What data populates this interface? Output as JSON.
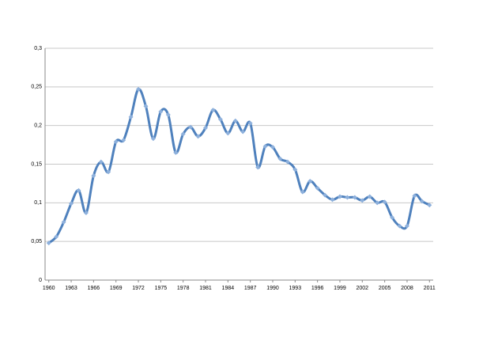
{
  "chart_data": {
    "type": "line",
    "x": [
      1960,
      1961,
      1962,
      1963,
      1964,
      1965,
      1966,
      1967,
      1968,
      1969,
      1970,
      1971,
      1972,
      1973,
      1974,
      1975,
      1976,
      1977,
      1978,
      1979,
      1980,
      1981,
      1982,
      1983,
      1984,
      1985,
      1986,
      1987,
      1988,
      1989,
      1990,
      1991,
      1992,
      1993,
      1994,
      1995,
      1996,
      1997,
      1998,
      1999,
      2000,
      2001,
      2002,
      2003,
      2004,
      2005,
      2006,
      2007,
      2008,
      2009,
      2010,
      2011
    ],
    "values": [
      0.048,
      0.056,
      0.075,
      0.099,
      0.116,
      0.087,
      0.135,
      0.153,
      0.14,
      0.179,
      0.181,
      0.211,
      0.247,
      0.225,
      0.183,
      0.218,
      0.214,
      0.165,
      0.189,
      0.198,
      0.186,
      0.197,
      0.22,
      0.208,
      0.19,
      0.206,
      0.192,
      0.203,
      0.146,
      0.173,
      0.172,
      0.157,
      0.153,
      0.143,
      0.114,
      0.128,
      0.119,
      0.11,
      0.104,
      0.108,
      0.107,
      0.107,
      0.103,
      0.108,
      0.1,
      0.101,
      0.081,
      0.07,
      0.07,
      0.109,
      0.102,
      0.097
    ],
    "color": "#4f81bd",
    "marker_color": "#8db0dc",
    "xlim": [
      1959.5,
      2011.5
    ],
    "xticks": [
      1960,
      1963,
      1966,
      1969,
      1972,
      1975,
      1978,
      1981,
      1984,
      1987,
      1990,
      1993,
      1996,
      1999,
      2002,
      2005,
      2008,
      2011
    ],
    "ylim": [
      0,
      0.3
    ],
    "yticks": [
      0,
      {
        "value": 0.05,
        "label": "0,05"
      },
      {
        "value": 0.1,
        "label": "0,1"
      },
      {
        "value": 0.15,
        "label": "0,15"
      },
      {
        "value": 0.2,
        "label": "0,2"
      },
      {
        "value": 0.25,
        "label": "0,25"
      },
      {
        "value": 0.3,
        "label": "0,3"
      }
    ],
    "grid": true
  }
}
